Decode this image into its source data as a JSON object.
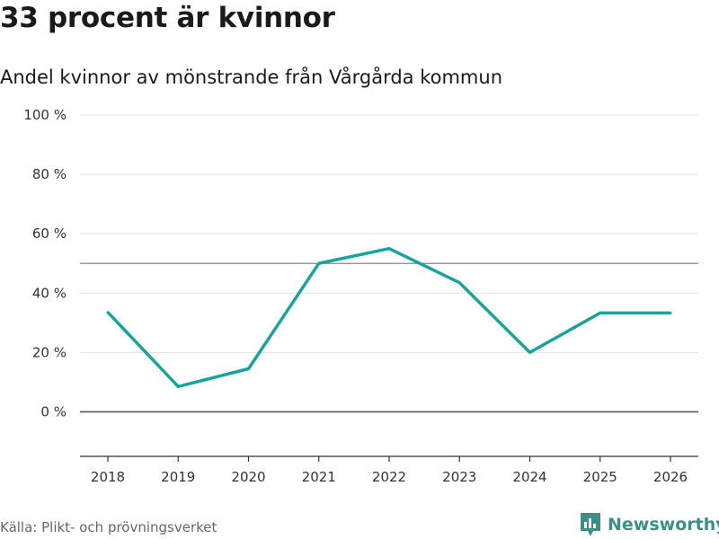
{
  "title": "33 procent är kvinnor",
  "subtitle": "Andel kvinnor av mönstrande från Vårgårda kommun",
  "source": "Källa: Plikt- och prövningsverket",
  "logo_text": "Newsworthy",
  "colors": {
    "line": "#1aa39a",
    "grid": "#e3e3e3",
    "reference": "#888888",
    "zero": "#555555",
    "logo": "#3b8f87"
  },
  "chart_data": {
    "type": "line",
    "title": "33 procent är kvinnor",
    "subtitle": "Andel kvinnor av mönstrande från Vårgårda kommun",
    "xlabel": "",
    "ylabel": "",
    "categories": [
      "2018",
      "2019",
      "2020",
      "2021",
      "2022",
      "2023",
      "2024",
      "2025",
      "2026"
    ],
    "series": [
      {
        "name": "Andel kvinnor",
        "values": [
          33.5,
          8.5,
          14.5,
          50,
          55,
          43.5,
          20,
          33.3,
          33.3
        ]
      }
    ],
    "yticks": [
      0,
      20,
      40,
      60,
      80,
      100
    ],
    "ytick_labels": [
      "0 %",
      "20 %",
      "40 %",
      "60 %",
      "80 %",
      "100 %"
    ],
    "ylim": [
      -15,
      100
    ],
    "reference_line": 50,
    "grid": true
  }
}
